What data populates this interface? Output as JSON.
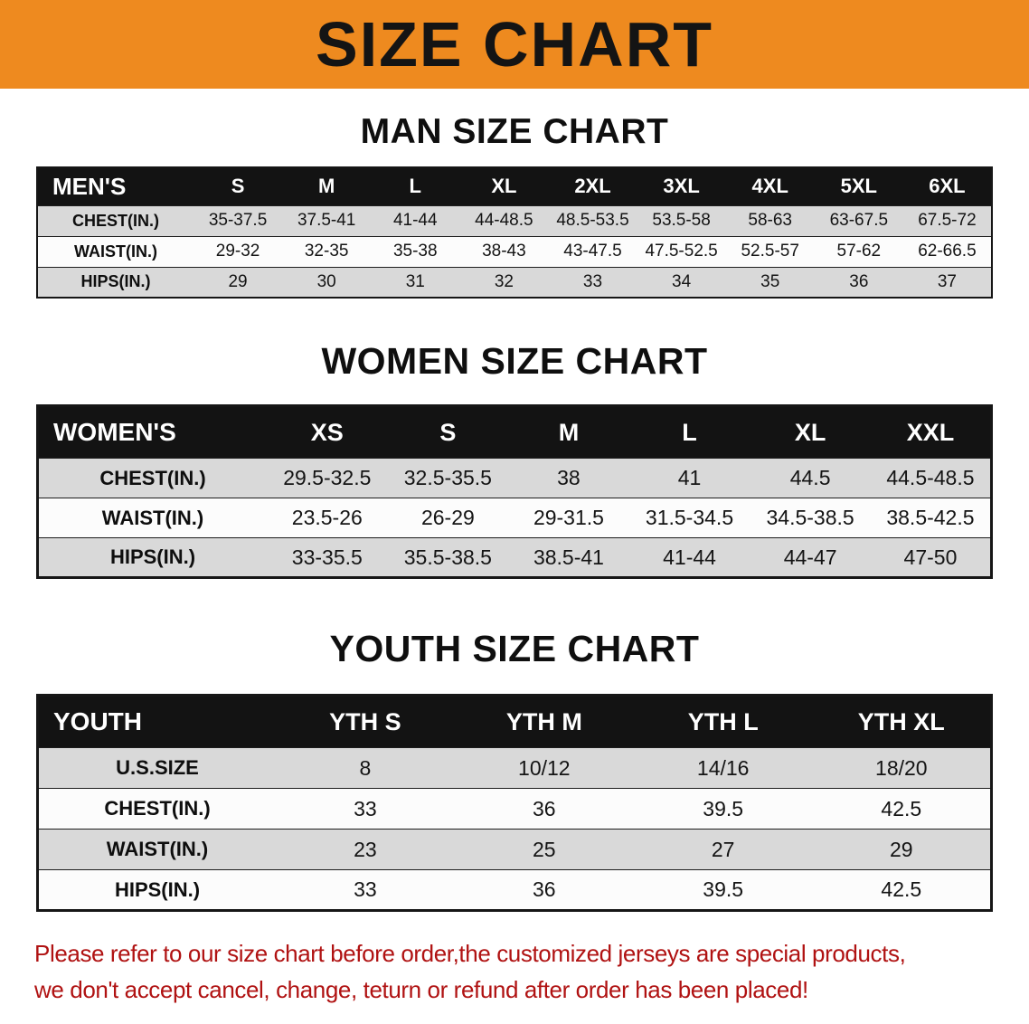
{
  "banner": {
    "title": "SIZE CHART"
  },
  "colors": {
    "banner_bg": "#ee8a1f",
    "table_header_bg": "#131313",
    "row_alt_gray": "#d9d9d9",
    "disclaimer_red": "#b01212"
  },
  "sections": [
    {
      "id": "men",
      "heading": "MAN SIZE CHART",
      "header": [
        "MEN'S",
        "S",
        "M",
        "L",
        "XL",
        "2XL",
        "3XL",
        "4XL",
        "5XL",
        "6XL"
      ],
      "rows": [
        [
          "CHEST(IN.)",
          "35-37.5",
          "37.5-41",
          "41-44",
          "44-48.5",
          "48.5-53.5",
          "53.5-58",
          "58-63",
          "63-67.5",
          "67.5-72"
        ],
        [
          "WAIST(IN.)",
          "29-32",
          "32-35",
          "35-38",
          "38-43",
          "43-47.5",
          "47.5-52.5",
          "52.5-57",
          "57-62",
          "62-66.5"
        ],
        [
          "HIPS(IN.)",
          "29",
          "30",
          "31",
          "32",
          "33",
          "34",
          "35",
          "36",
          "37"
        ]
      ]
    },
    {
      "id": "women",
      "heading": "WOMEN SIZE CHART",
      "header": [
        "WOMEN'S",
        "XS",
        "S",
        "M",
        "L",
        "XL",
        "XXL"
      ],
      "rows": [
        [
          "CHEST(IN.)",
          "29.5-32.5",
          "32.5-35.5",
          "38",
          "41",
          "44.5",
          "44.5-48.5"
        ],
        [
          "WAIST(IN.)",
          "23.5-26",
          "26-29",
          "29-31.5",
          "31.5-34.5",
          "34.5-38.5",
          "38.5-42.5"
        ],
        [
          "HIPS(IN.)",
          "33-35.5",
          "35.5-38.5",
          "38.5-41",
          "41-44",
          "44-47",
          "47-50"
        ]
      ]
    },
    {
      "id": "youth",
      "heading": "YOUTH SIZE CHART",
      "header": [
        "YOUTH",
        "YTH S",
        "YTH M",
        "YTH L",
        "YTH XL"
      ],
      "rows": [
        [
          "U.S.SIZE",
          "8",
          "10/12",
          "14/16",
          "18/20"
        ],
        [
          "CHEST(IN.)",
          "33",
          "36",
          "39.5",
          "42.5"
        ],
        [
          "WAIST(IN.)",
          "23",
          "25",
          "27",
          "29"
        ],
        [
          "HIPS(IN.)",
          "33",
          "36",
          "39.5",
          "42.5"
        ]
      ]
    }
  ],
  "disclaimer": {
    "line1": "Please refer to our size chart before order,the customized jerseys are special products,",
    "line2": "we don't accept cancel, change, teturn or refund after order has been placed!"
  }
}
